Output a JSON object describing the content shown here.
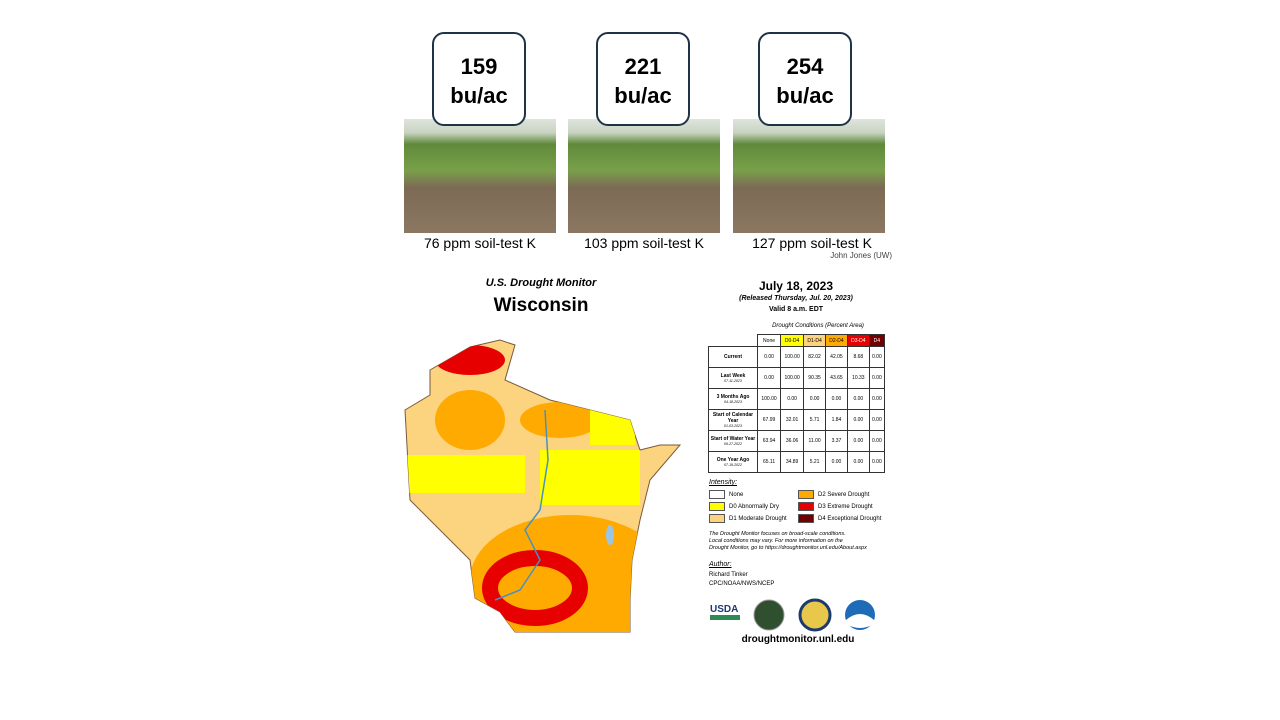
{
  "yields": [
    {
      "amount": "159",
      "unit": "bu/ac",
      "caption": "76 ppm soil-test K"
    },
    {
      "amount": "221",
      "unit": "bu/ac",
      "caption": "103 ppm soil-test K"
    },
    {
      "amount": "254",
      "unit": "bu/ac",
      "caption": "127 ppm soil-test K"
    }
  ],
  "photo_credit": "John Jones (UW)",
  "drought": {
    "title": "U.S. Drought Monitor",
    "state": "Wisconsin",
    "date": "July 18, 2023",
    "released": "(Released Thursday, Jul. 20, 2023)",
    "valid": "Valid 8 a.m. EDT",
    "table": {
      "caption": "Drought Conditions (Percent Area)",
      "headers": [
        "None",
        "D0-D4",
        "D1-D4",
        "D2-D4",
        "D3-D4",
        "D4"
      ],
      "rows": [
        {
          "label": "Current",
          "date": "",
          "values": [
            "0.00",
            "100.00",
            "82.02",
            "42.05",
            "8.68",
            "0.00"
          ]
        },
        {
          "label": "Last Week",
          "date": "07-11-2023",
          "values": [
            "0.00",
            "100.00",
            "90.35",
            "43.65",
            "10.33",
            "0.00"
          ]
        },
        {
          "label": "3 Months Ago",
          "date": "04-18-2023",
          "values": [
            "100.00",
            "0.00",
            "0.00",
            "0.00",
            "0.00",
            "0.00"
          ]
        },
        {
          "label": "Start of Calendar Year",
          "date": "01-03-2023",
          "values": [
            "67.99",
            "32.01",
            "5.71",
            "1.84",
            "0.00",
            "0.00"
          ]
        },
        {
          "label": "Start of Water Year",
          "date": "09-27-2022",
          "values": [
            "63.94",
            "36.06",
            "11.00",
            "3.37",
            "0.00",
            "0.00"
          ]
        },
        {
          "label": "One Year Ago",
          "date": "07-19-2022",
          "values": [
            "65.11",
            "34.89",
            "5.21",
            "0.00",
            "0.00",
            "0.00"
          ]
        }
      ]
    },
    "legend": {
      "title": "Intensity:",
      "items": [
        "None",
        "D0 Abnormally Dry",
        "D1 Moderate Drought",
        "D2 Severe Drought",
        "D3 Extreme Drought",
        "D4 Exceptional Drought"
      ]
    },
    "note": [
      "The Drought Monitor focuses on broad-scale conditions.",
      "Local conditions may vary. For more information on the",
      "Drought Monitor, go to https://droughtmonitor.unl.edu/About.aspx"
    ],
    "author_label": "Author:",
    "author": "Richard Tinker",
    "agency": "CPC/NOAA/NWS/NCEP",
    "logo_text": "USDA",
    "url": "droughtmonitor.unl.edu"
  }
}
